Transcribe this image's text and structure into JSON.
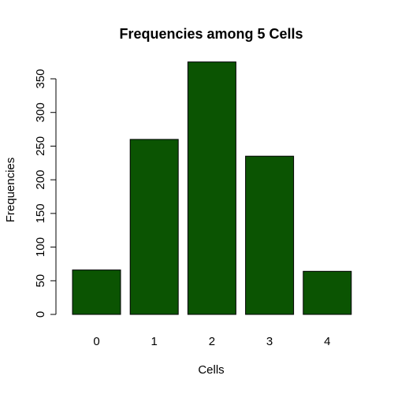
{
  "chart_data": {
    "type": "bar",
    "title": "Frequencies among 5 Cells",
    "xlabel": "Cells",
    "ylabel": "Frequencies",
    "categories": [
      "0",
      "1",
      "2",
      "3",
      "4"
    ],
    "values": [
      66,
      260,
      375,
      235,
      64
    ],
    "ylim": [
      0,
      350
    ],
    "yticks": [
      0,
      50,
      100,
      150,
      200,
      250,
      300,
      350
    ],
    "bar_color": "#0b5402",
    "grid": false,
    "legend": "none"
  }
}
